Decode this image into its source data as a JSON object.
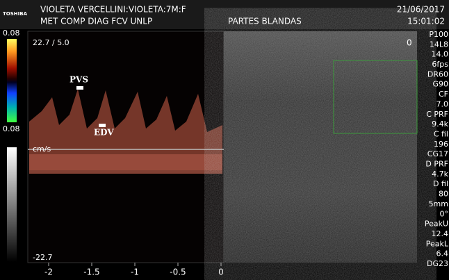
{
  "header": {
    "brand": "TOSHIBA",
    "patient": "VIOLETA VERCELLINI:VIOLETA:7M:F",
    "institution": "MET COMP DIAG FCV UNLP",
    "exam": "PARTES BLANDAS",
    "date": "21/06/2017",
    "time": "15:01:02"
  },
  "color_scale": {
    "top": "0.08",
    "bottom": "0.08"
  },
  "doppler": {
    "scale": "22.7 / 5.0",
    "unit": "cm/s",
    "min": "-22.7",
    "pvs": "PVS",
    "edv": "EDV",
    "time_axis": [
      "-2",
      "-1.5",
      "-1",
      "-0.5",
      "0"
    ]
  },
  "bmode": {
    "depth_start": "0"
  },
  "params": [
    "P100",
    "14L8",
    "14.0",
    "6fps",
    "DR60",
    "G90",
    "CF",
    "7.0",
    "C PRF",
    "9.4k",
    "C fil",
    "196",
    "CG17",
    "D PRF",
    "4.7k",
    "D fil",
    "80",
    "5mm",
    "0°",
    "PeakU",
    "12.4",
    "PeakL",
    "6.4",
    "DG23"
  ]
}
